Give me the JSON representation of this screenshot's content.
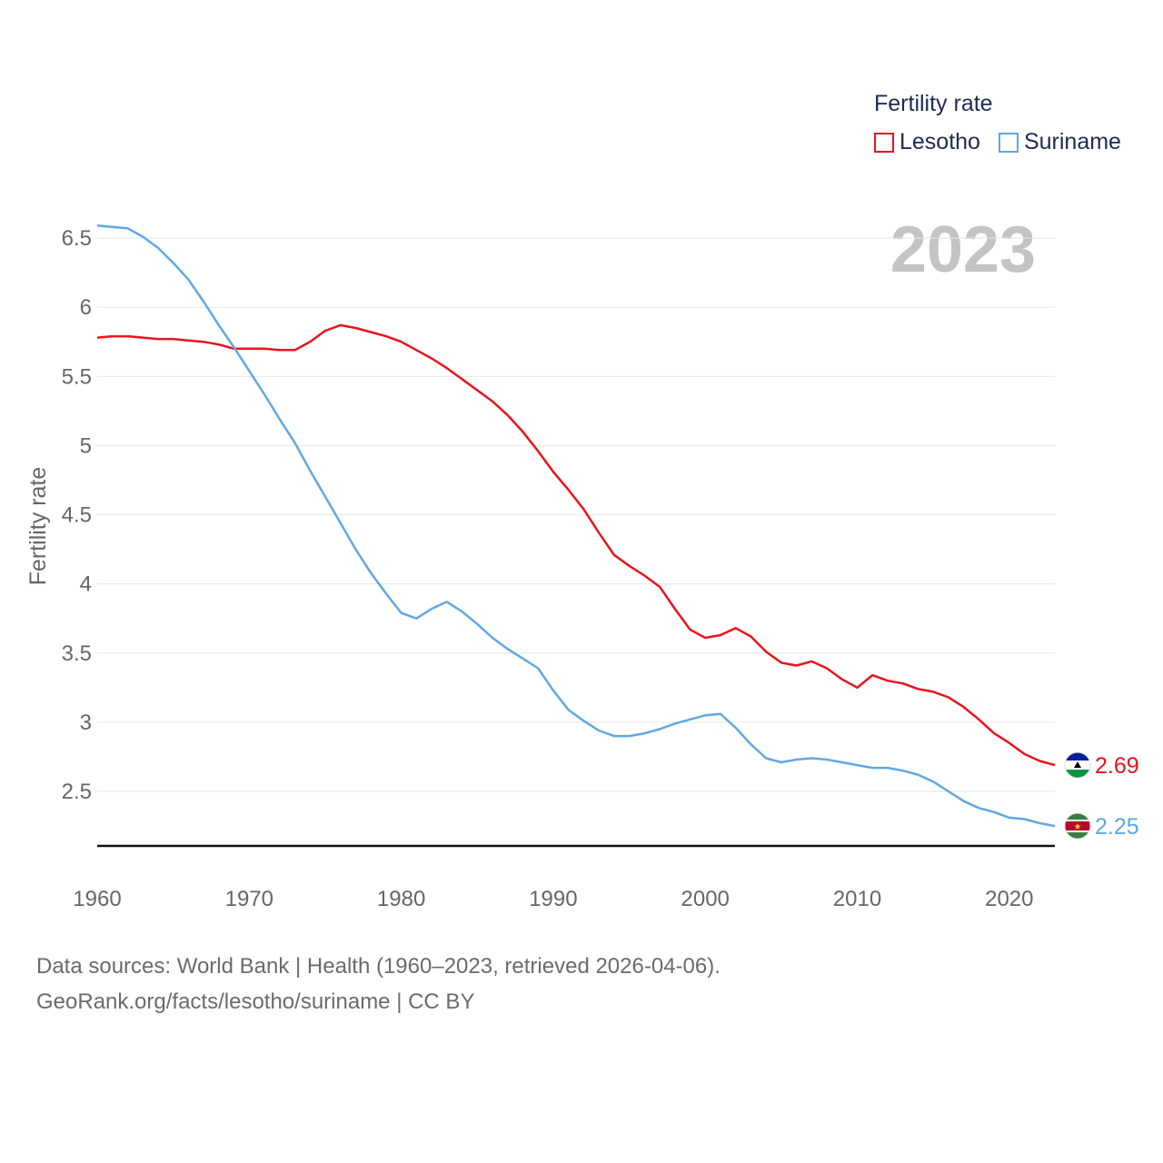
{
  "legend": {
    "title": "Fertility rate",
    "items": [
      {
        "label": "Lesotho",
        "color": "#e8141b"
      },
      {
        "label": "Suriname",
        "color": "#5fa8e6"
      }
    ]
  },
  "footer": {
    "line1": "Data sources: World Bank | Health (1960–2023, retrieved 2026-04-06).",
    "line2": "GeoRank.org/facts/lesotho/suriname | CC BY"
  },
  "chart_data": {
    "type": "line",
    "title": "Fertility rate",
    "xlabel": "",
    "ylabel": "Fertility rate",
    "year_label": "2023",
    "xlim": [
      1960,
      2023
    ],
    "ylim": [
      2.1,
      6.6
    ],
    "x_ticks": [
      "1960",
      "1970",
      "1980",
      "1990",
      "2000",
      "2010",
      "2020"
    ],
    "y_ticks": [
      "2.5",
      "3",
      "3.5",
      "4",
      "4.5",
      "5",
      "5.5",
      "6",
      "6.5"
    ],
    "grid": true,
    "legend_position": "top-right",
    "x": [
      1960,
      1961,
      1962,
      1963,
      1964,
      1965,
      1966,
      1967,
      1968,
      1969,
      1970,
      1971,
      1972,
      1973,
      1974,
      1975,
      1976,
      1977,
      1978,
      1979,
      1980,
      1981,
      1982,
      1983,
      1984,
      1985,
      1986,
      1987,
      1988,
      1989,
      1990,
      1991,
      1992,
      1993,
      1994,
      1995,
      1996,
      1997,
      1998,
      1999,
      2000,
      2001,
      2002,
      2003,
      2004,
      2005,
      2006,
      2007,
      2008,
      2009,
      2010,
      2011,
      2012,
      2013,
      2014,
      2015,
      2016,
      2017,
      2018,
      2019,
      2020,
      2021,
      2022,
      2023
    ],
    "series": [
      {
        "name": "Lesotho",
        "color": "#e8141b",
        "end_label": "2.69",
        "values": [
          5.78,
          5.79,
          5.79,
          5.78,
          5.77,
          5.77,
          5.76,
          5.75,
          5.73,
          5.7,
          5.7,
          5.7,
          5.69,
          5.69,
          5.75,
          5.83,
          5.87,
          5.85,
          5.82,
          5.79,
          5.75,
          5.69,
          5.63,
          5.56,
          5.48,
          5.4,
          5.32,
          5.22,
          5.1,
          4.96,
          4.81,
          4.68,
          4.54,
          4.37,
          4.21,
          4.13,
          4.06,
          3.98,
          3.82,
          3.67,
          3.61,
          3.63,
          3.68,
          3.62,
          3.51,
          3.43,
          3.41,
          3.44,
          3.39,
          3.31,
          3.25,
          3.34,
          3.3,
          3.28,
          3.24,
          3.22,
          3.18,
          3.11,
          3.02,
          2.92,
          2.85,
          2.77,
          2.72,
          2.69
        ]
      },
      {
        "name": "Suriname",
        "color": "#5fa8e6",
        "end_label": "2.25",
        "values": [
          6.59,
          6.58,
          6.57,
          6.51,
          6.43,
          6.32,
          6.2,
          6.04,
          5.87,
          5.71,
          5.54,
          5.37,
          5.19,
          5.02,
          4.82,
          4.63,
          4.44,
          4.25,
          4.08,
          3.93,
          3.79,
          3.75,
          3.82,
          3.87,
          3.8,
          3.71,
          3.61,
          3.53,
          3.46,
          3.39,
          3.23,
          3.09,
          3.01,
          2.94,
          2.9,
          2.9,
          2.92,
          2.95,
          2.99,
          3.02,
          3.05,
          3.06,
          2.96,
          2.84,
          2.74,
          2.71,
          2.73,
          2.74,
          2.73,
          2.71,
          2.69,
          2.67,
          2.67,
          2.65,
          2.62,
          2.57,
          2.5,
          2.43,
          2.38,
          2.35,
          2.31,
          2.3,
          2.27,
          2.25
        ]
      }
    ],
    "source": "World Bank | Health"
  }
}
